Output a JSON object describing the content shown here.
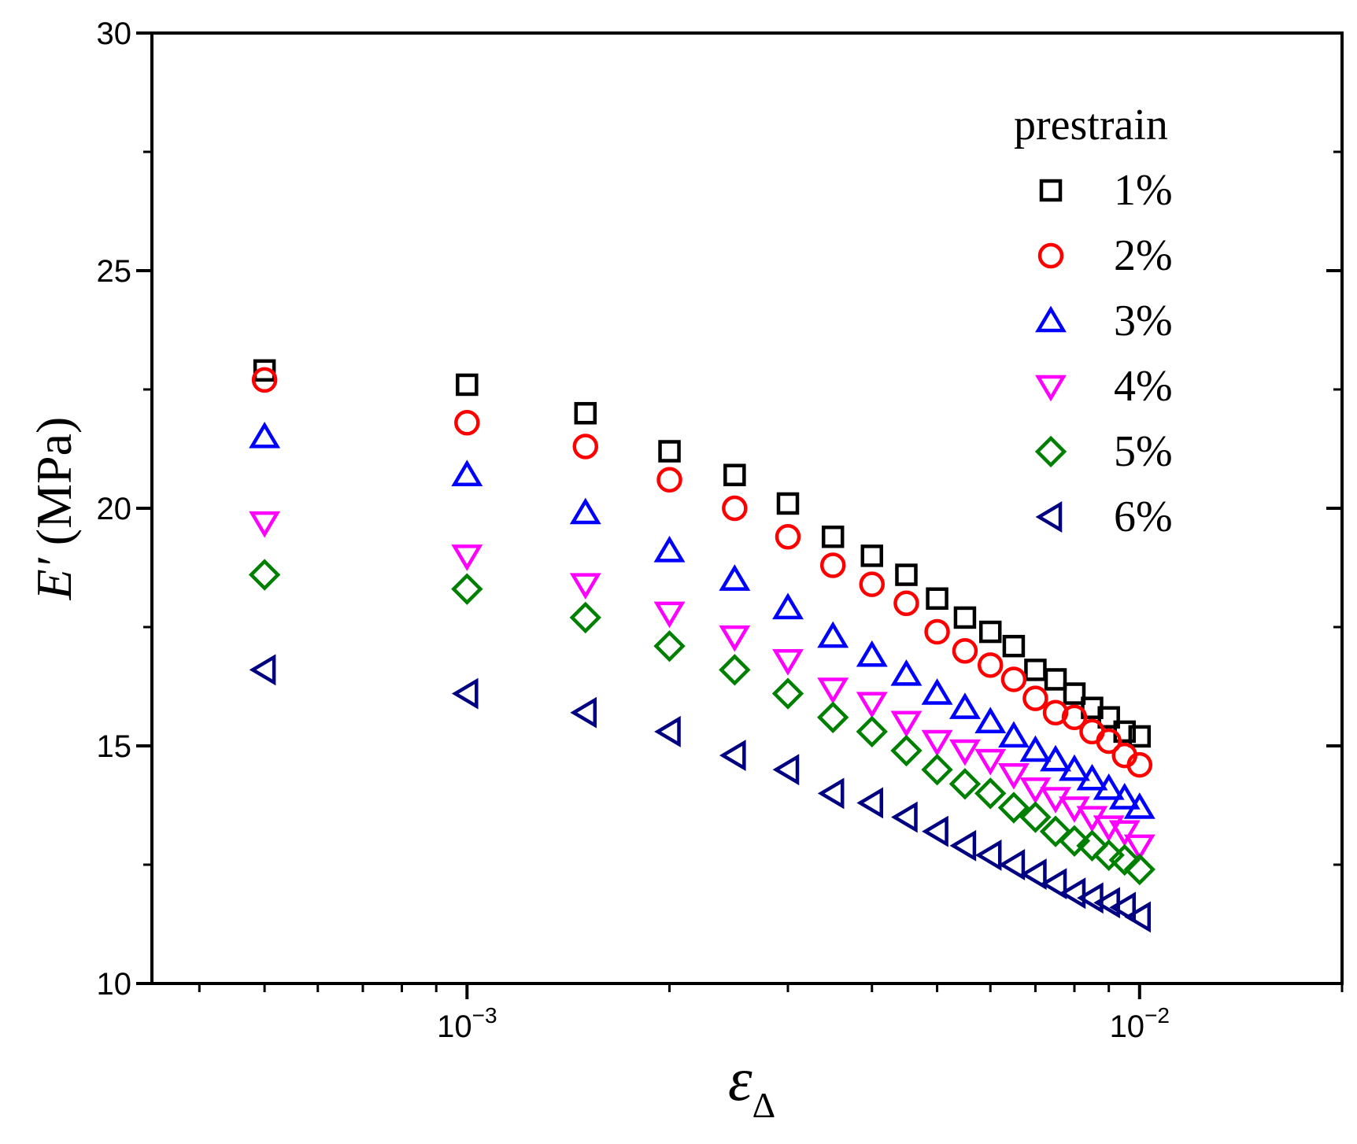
{
  "chart_data": {
    "type": "scatter",
    "title": "",
    "xlabel": "ε",
    "xlabel_sub": "Δ",
    "ylabel_symbol": "E′",
    "ylabel_unit": "(MPa)",
    "xscale": "log",
    "xlim": [
      0.00034,
      0.02
    ],
    "ylim": [
      10,
      30
    ],
    "yticks": [
      10,
      15,
      20,
      25,
      30
    ],
    "ytick_labels": [
      "10",
      "15",
      "20",
      "25",
      "30"
    ],
    "xtick_labels": [
      {
        "value": 0.001,
        "base": "10",
        "exp": "−3"
      },
      {
        "value": 0.01,
        "base": "10",
        "exp": "−2"
      }
    ],
    "legend_title": "prestrain",
    "legend_position": "top-right",
    "x": [
      0.0005,
      0.001,
      0.0015,
      0.002,
      0.0025,
      0.003,
      0.0035,
      0.004,
      0.0045,
      0.005,
      0.0055,
      0.006,
      0.0065,
      0.007,
      0.0075,
      0.008,
      0.0085,
      0.009,
      0.0095,
      0.01
    ],
    "series": [
      {
        "name": "1%",
        "marker": "square",
        "color": "#000000",
        "values": [
          22.9,
          22.6,
          22.0,
          21.2,
          20.7,
          20.1,
          19.4,
          19.0,
          18.6,
          18.1,
          17.7,
          17.4,
          17.1,
          16.6,
          16.4,
          16.1,
          15.8,
          15.6,
          15.3,
          15.2
        ]
      },
      {
        "name": "2%",
        "marker": "circle",
        "color": "#ff0000",
        "values": [
          22.7,
          21.8,
          21.3,
          20.6,
          20.0,
          19.4,
          18.8,
          18.4,
          18.0,
          17.4,
          17.0,
          16.7,
          16.4,
          16.0,
          15.7,
          15.6,
          15.3,
          15.1,
          14.8,
          14.6
        ]
      },
      {
        "name": "3%",
        "marker": "triangle-up",
        "color": "#0000ff",
        "values": [
          21.5,
          20.7,
          19.9,
          19.1,
          18.5,
          17.9,
          17.3,
          16.9,
          16.5,
          16.1,
          15.8,
          15.5,
          15.2,
          14.9,
          14.7,
          14.5,
          14.3,
          14.1,
          13.9,
          13.7
        ]
      },
      {
        "name": "4%",
        "marker": "triangle-down",
        "color": "#ff00ff",
        "values": [
          19.7,
          19.0,
          18.4,
          17.8,
          17.3,
          16.8,
          16.2,
          15.9,
          15.5,
          15.1,
          14.9,
          14.7,
          14.4,
          14.1,
          13.9,
          13.7,
          13.5,
          13.3,
          13.2,
          12.9
        ]
      },
      {
        "name": "5%",
        "marker": "diamond",
        "color": "#008000",
        "values": [
          18.6,
          18.3,
          17.7,
          17.1,
          16.6,
          16.1,
          15.6,
          15.3,
          14.9,
          14.5,
          14.2,
          14.0,
          13.7,
          13.5,
          13.2,
          13.0,
          12.9,
          12.7,
          12.6,
          12.4
        ]
      },
      {
        "name": "6%",
        "marker": "triangle-left",
        "color": "#000080",
        "values": [
          16.6,
          16.1,
          15.7,
          15.3,
          14.8,
          14.5,
          14.0,
          13.8,
          13.5,
          13.2,
          12.9,
          12.7,
          12.5,
          12.3,
          12.1,
          11.9,
          11.8,
          11.7,
          11.6,
          11.4
        ]
      }
    ]
  }
}
